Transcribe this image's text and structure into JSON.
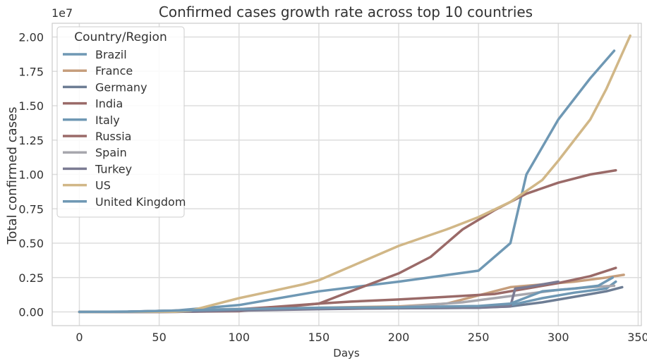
{
  "chart_data": {
    "type": "line",
    "title": "Confirmed cases growth rate across top 10 countries",
    "xlabel": "Days",
    "ylabel": "Total confirmed cases",
    "y_offset_label": "1e7",
    "xlim": [
      -17,
      352
    ],
    "ylim": [
      -0.1,
      2.1
    ],
    "y_unit_multiplier": 10000000,
    "x_ticks": [
      0,
      50,
      100,
      150,
      200,
      250,
      300,
      350
    ],
    "x_tick_labels": [
      "0",
      "50",
      "100",
      "150",
      "200",
      "250",
      "300",
      "350"
    ],
    "y_ticks": [
      0,
      0.25,
      0.5,
      0.75,
      1.0,
      1.25,
      1.5,
      1.75,
      2.0
    ],
    "y_tick_labels": [
      "0.00",
      "0.25",
      "0.50",
      "0.75",
      "1.00",
      "1.25",
      "1.50",
      "1.75",
      "2.00"
    ],
    "grid": true,
    "legend_title": "Country/Region",
    "legend_position": "top-left",
    "series": [
      {
        "name": "Brazil",
        "color": "#6f98b4",
        "points": [
          [
            0,
            0
          ],
          [
            30,
            0.002
          ],
          [
            60,
            0.01
          ],
          [
            100,
            0.05
          ],
          [
            150,
            0.15
          ],
          [
            200,
            0.22
          ],
          [
            250,
            0.3
          ],
          [
            270,
            0.5
          ],
          [
            280,
            1.0
          ],
          [
            300,
            1.4
          ],
          [
            320,
            1.7
          ],
          [
            335,
            1.9
          ]
        ]
      },
      {
        "name": "France",
        "color": "#c69e7c",
        "points": [
          [
            0,
            0
          ],
          [
            30,
            0.001
          ],
          [
            60,
            0.01
          ],
          [
            100,
            0.02
          ],
          [
            150,
            0.03
          ],
          [
            200,
            0.04
          ],
          [
            230,
            0.06
          ],
          [
            250,
            0.12
          ],
          [
            270,
            0.18
          ],
          [
            290,
            0.2
          ],
          [
            310,
            0.22
          ],
          [
            330,
            0.25
          ],
          [
            341,
            0.27
          ]
        ]
      },
      {
        "name": "Germany",
        "color": "#6d7d94",
        "points": [
          [
            0,
            0
          ],
          [
            30,
            0.001
          ],
          [
            60,
            0.008
          ],
          [
            100,
            0.02
          ],
          [
            150,
            0.025
          ],
          [
            200,
            0.028
          ],
          [
            250,
            0.032
          ],
          [
            270,
            0.04
          ],
          [
            290,
            0.07
          ],
          [
            310,
            0.11
          ],
          [
            330,
            0.15
          ],
          [
            340,
            0.18
          ]
        ]
      },
      {
        "name": "India",
        "color": "#9a6a68",
        "points": [
          [
            0,
            0
          ],
          [
            50,
            0
          ],
          [
            100,
            0.005
          ],
          [
            150,
            0.06
          ],
          [
            170,
            0.15
          ],
          [
            200,
            0.28
          ],
          [
            220,
            0.4
          ],
          [
            240,
            0.6
          ],
          [
            260,
            0.74
          ],
          [
            280,
            0.86
          ],
          [
            300,
            0.94
          ],
          [
            320,
            1.0
          ],
          [
            336,
            1.03
          ]
        ]
      },
      {
        "name": "Italy",
        "color": "#6f98b4",
        "points": [
          [
            0,
            0
          ],
          [
            30,
            0.001
          ],
          [
            60,
            0.01
          ],
          [
            100,
            0.021
          ],
          [
            150,
            0.023
          ],
          [
            200,
            0.026
          ],
          [
            250,
            0.03
          ],
          [
            270,
            0.05
          ],
          [
            290,
            0.1
          ],
          [
            310,
            0.14
          ],
          [
            330,
            0.17
          ],
          [
            336,
            0.22
          ]
        ]
      },
      {
        "name": "Russia",
        "color": "#9a6a68",
        "points": [
          [
            0,
            0
          ],
          [
            50,
            0
          ],
          [
            80,
            0.004
          ],
          [
            100,
            0.02
          ],
          [
            120,
            0.035
          ],
          [
            150,
            0.06
          ],
          [
            170,
            0.075
          ],
          [
            200,
            0.09
          ],
          [
            230,
            0.11
          ],
          [
            260,
            0.13
          ],
          [
            280,
            0.17
          ],
          [
            300,
            0.21
          ],
          [
            320,
            0.26
          ],
          [
            336,
            0.32
          ]
        ]
      },
      {
        "name": "Spain",
        "color": "#a7a7ae",
        "points": [
          [
            0,
            0
          ],
          [
            30,
            0.001
          ],
          [
            60,
            0.01
          ],
          [
            100,
            0.022
          ],
          [
            150,
            0.024
          ],
          [
            200,
            0.035
          ],
          [
            240,
            0.07
          ],
          [
            260,
            0.1
          ],
          [
            280,
            0.13
          ],
          [
            300,
            0.16
          ],
          [
            320,
            0.18
          ],
          [
            335,
            0.19
          ]
        ]
      },
      {
        "name": "Turkey",
        "color": "#7b7b93",
        "points": [
          [
            0,
            0
          ],
          [
            60,
            0
          ],
          [
            80,
            0.005
          ],
          [
            100,
            0.01
          ],
          [
            150,
            0.02
          ],
          [
            200,
            0.027
          ],
          [
            250,
            0.03
          ],
          [
            270,
            0.04
          ],
          [
            273,
            0.17
          ],
          [
            280,
            0.18
          ],
          [
            290,
            0.2
          ],
          [
            300,
            0.22
          ]
        ]
      },
      {
        "name": "US",
        "color": "#d1b787",
        "points": [
          [
            0,
            0
          ],
          [
            40,
            0.001
          ],
          [
            60,
            0.001
          ],
          [
            70,
            0.01
          ],
          [
            80,
            0.04
          ],
          [
            100,
            0.1
          ],
          [
            120,
            0.15
          ],
          [
            140,
            0.2
          ],
          [
            150,
            0.23
          ],
          [
            170,
            0.33
          ],
          [
            200,
            0.48
          ],
          [
            230,
            0.6
          ],
          [
            250,
            0.69
          ],
          [
            270,
            0.8
          ],
          [
            290,
            0.96
          ],
          [
            300,
            1.1
          ],
          [
            320,
            1.4
          ],
          [
            330,
            1.62
          ],
          [
            345,
            2.01
          ]
        ]
      },
      {
        "name": "United Kingdom",
        "color": "#6f98b4",
        "points": [
          [
            0,
            0
          ],
          [
            30,
            0.002
          ],
          [
            60,
            0.01
          ],
          [
            100,
            0.02
          ],
          [
            150,
            0.03
          ],
          [
            200,
            0.034
          ],
          [
            250,
            0.043
          ],
          [
            270,
            0.06
          ],
          [
            290,
            0.15
          ],
          [
            310,
            0.17
          ],
          [
            325,
            0.19
          ],
          [
            334,
            0.25
          ]
        ]
      }
    ]
  }
}
